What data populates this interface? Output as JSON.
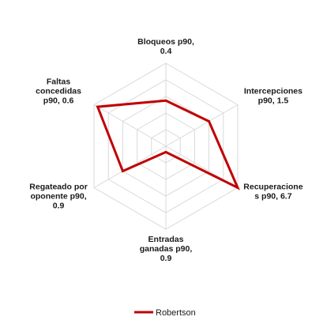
{
  "chart_data": {
    "type": "radar",
    "axes": [
      {
        "key": "bloqueos",
        "label_lines": [
          "Bloqueos p90,",
          "0.4"
        ]
      },
      {
        "key": "intercepciones",
        "label_lines": [
          "Intercepciones",
          "p90, 1.5"
        ]
      },
      {
        "key": "recuperaciones",
        "label_lines": [
          "Recuperacione",
          "s p90, 6.7"
        ]
      },
      {
        "key": "entradas",
        "label_lines": [
          "Entradas",
          "ganadas p90,",
          "0.9"
        ]
      },
      {
        "key": "regateado",
        "label_lines": [
          "Regateado por",
          "oponente p90,",
          "0.9"
        ]
      },
      {
        "key": "faltas",
        "label_lines": [
          "Faltas",
          "concedidas",
          "p90, 0.6"
        ]
      }
    ],
    "series": [
      {
        "name": "Robertson",
        "color": "#c00000",
        "values": [
          0.55,
          0.6,
          1.0,
          0.07,
          0.6,
          0.95
        ]
      }
    ],
    "r_range": [
      0,
      1
    ],
    "rings": 5,
    "grid": true,
    "legend_position": "bottom"
  }
}
